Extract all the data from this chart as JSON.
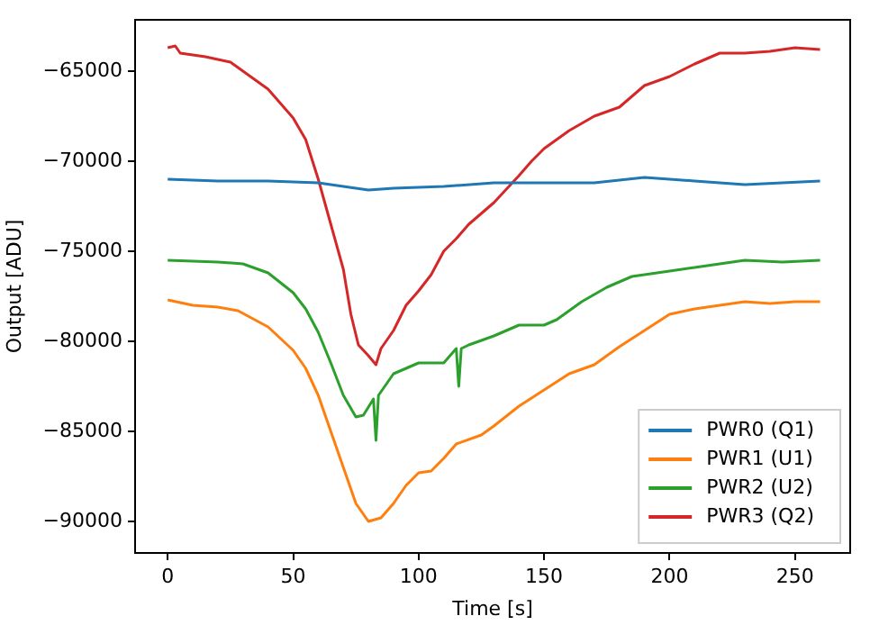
{
  "chart_data": {
    "type": "line",
    "xlabel": "Time [s]",
    "ylabel": "Output [ADU]",
    "xlim": [
      -13,
      272
    ],
    "ylim": [
      -91750,
      -62150
    ],
    "xticks": [
      0,
      50,
      100,
      150,
      200,
      250
    ],
    "yticks": [
      {
        "value": -90000,
        "label": "−90000"
      },
      {
        "value": -85000,
        "label": "−85000"
      },
      {
        "value": -80000,
        "label": "−80000"
      },
      {
        "value": -75000,
        "label": "−75000"
      },
      {
        "value": -70000,
        "label": "−70000"
      },
      {
        "value": -65000,
        "label": "−65000"
      }
    ],
    "grid": false,
    "legend": "bottom right",
    "marker": "none",
    "line_style": "solid",
    "series": [
      {
        "name": "PWR0 (Q1)",
        "color": "#1f77b4",
        "x": [
          0,
          20,
          40,
          60,
          70,
          80,
          90,
          110,
          130,
          150,
          170,
          190,
          210,
          230,
          260
        ],
        "values": [
          -71000,
          -71100,
          -71100,
          -71200,
          -71400,
          -71600,
          -71500,
          -71400,
          -71200,
          -71200,
          -71200,
          -70900,
          -71100,
          -71300,
          -71100
        ]
      },
      {
        "name": "PWR1 (U1)",
        "color": "#ff7f0e",
        "x": [
          0,
          10,
          20,
          28,
          40,
          50,
          55,
          60,
          65,
          70,
          75,
          80,
          85,
          90,
          95,
          100,
          105,
          110,
          115,
          125,
          130,
          140,
          150,
          160,
          170,
          180,
          190,
          200,
          210,
          220,
          230,
          240,
          250,
          260
        ],
        "values": [
          -77700,
          -78000,
          -78100,
          -78300,
          -79200,
          -80500,
          -81500,
          -83000,
          -85000,
          -87000,
          -89000,
          -90000,
          -89800,
          -89000,
          -88000,
          -87300,
          -87200,
          -86500,
          -85700,
          -85200,
          -84700,
          -83600,
          -82700,
          -81800,
          -81300,
          -80300,
          -79400,
          -78500,
          -78200,
          -78000,
          -77800,
          -77900,
          -77800,
          -77800
        ]
      },
      {
        "name": "PWR2 (U2)",
        "color": "#2ca02c",
        "x": [
          0,
          20,
          30,
          40,
          50,
          55,
          60,
          65,
          70,
          75,
          78,
          82,
          83,
          84,
          90,
          100,
          110,
          115,
          116,
          117,
          120,
          130,
          140,
          150,
          155,
          165,
          175,
          185,
          200,
          210,
          230,
          245,
          260
        ],
        "values": [
          -75500,
          -75600,
          -75700,
          -76200,
          -77300,
          -78200,
          -79500,
          -81200,
          -83000,
          -84200,
          -84100,
          -83200,
          -85500,
          -83000,
          -81800,
          -81200,
          -81200,
          -80400,
          -82500,
          -80400,
          -80200,
          -79700,
          -79100,
          -79100,
          -78800,
          -77800,
          -77000,
          -76400,
          -76100,
          -75900,
          -75500,
          -75600,
          -75500
        ]
      },
      {
        "name": "PWR3 (Q2)",
        "color": "#d62728",
        "x": [
          0,
          3,
          5,
          15,
          25,
          30,
          40,
          50,
          55,
          60,
          65,
          70,
          73,
          76,
          80,
          83,
          85,
          90,
          95,
          100,
          105,
          110,
          115,
          120,
          130,
          140,
          145,
          150,
          160,
          170,
          180,
          190,
          200,
          210,
          220,
          230,
          240,
          250,
          260
        ],
        "values": [
          -63700,
          -63600,
          -64000,
          -64200,
          -64500,
          -65000,
          -66000,
          -67600,
          -68800,
          -71000,
          -73500,
          -76000,
          -78500,
          -80200,
          -80800,
          -81300,
          -80400,
          -79400,
          -78000,
          -77200,
          -76300,
          -75000,
          -74300,
          -73500,
          -72300,
          -70800,
          -70000,
          -69300,
          -68300,
          -67500,
          -67000,
          -65800,
          -65300,
          -64600,
          -64000,
          -64000,
          -63900,
          -63700,
          -63800
        ]
      }
    ]
  }
}
